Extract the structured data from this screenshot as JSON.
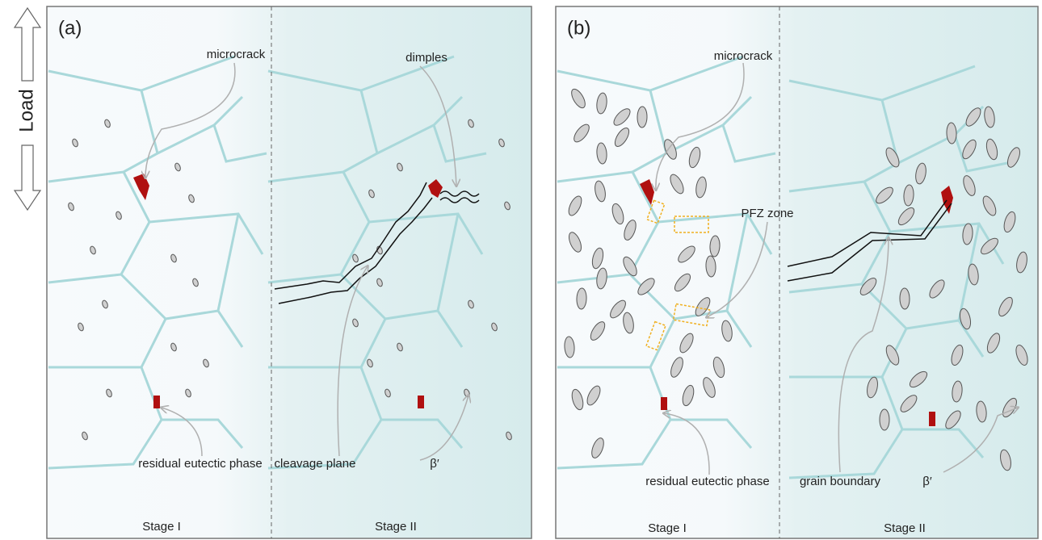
{
  "load_label": "Load",
  "panels": [
    {
      "label": "(a)",
      "microcrack": "microcrack",
      "dimples": "dimples",
      "eutectic": "residual eutectic phase",
      "cleavage": "cleavage plane",
      "beta": "β′",
      "stage_1": "Stage I",
      "stage_2": "Stage II"
    },
    {
      "label": "(b)",
      "microcrack": "microcrack",
      "pfz": "PFZ zone",
      "eutectic": "residual eutectic phase",
      "grain_boundary": "grain boundary",
      "beta": "β′",
      "stage_1": "Stage I",
      "stage_2": "Stage II"
    }
  ]
}
